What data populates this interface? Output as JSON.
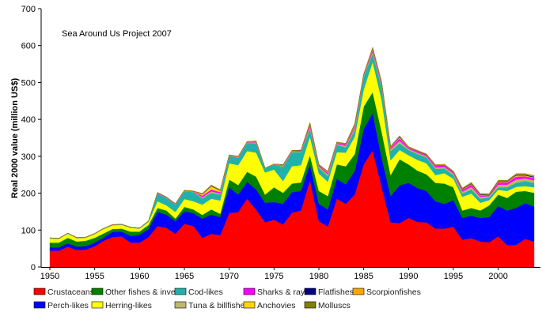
{
  "chart_data": {
    "type": "area",
    "stacked": true,
    "annotation": "Sea Around Us Project 2007",
    "xlabel": "",
    "ylabel": "Real 2000 value (million US$)",
    "xlim": [
      1949,
      2005
    ],
    "ylim": [
      0,
      700
    ],
    "x_ticks": [
      1950,
      1955,
      1960,
      1965,
      1970,
      1975,
      1980,
      1985,
      1990,
      1995,
      2000
    ],
    "y_ticks": [
      0,
      100,
      200,
      300,
      400,
      500,
      600,
      700
    ],
    "grid": false,
    "legend_position": "bottom",
    "x_start": 1950,
    "x_end": 2004,
    "series": [
      {
        "name": "Crustaceans",
        "color": "#ff0000",
        "values": [
          44,
          44,
          55,
          46,
          47,
          56,
          71,
          81,
          83,
          66,
          66,
          81,
          111,
          106,
          90,
          117,
          111,
          79,
          90,
          86,
          146,
          149,
          185,
          155,
          121,
          128,
          115,
          147,
          153,
          235,
          124,
          110,
          185,
          171,
          196,
          278,
          316,
          217,
          121,
          119,
          133,
          122,
          121,
          104,
          104,
          109,
          74,
          78,
          69,
          67,
          83,
          59,
          60,
          76,
          69
        ]
      },
      {
        "name": "Perch-likes",
        "color": "#0000ff",
        "values": [
          9,
          9,
          9,
          9,
          9,
          10,
          9,
          14,
          13,
          18,
          21,
          22,
          38,
          36,
          34,
          34,
          35,
          52,
          52,
          49,
          70,
          47,
          46,
          55,
          53,
          48,
          56,
          56,
          53,
          43,
          47,
          46,
          54,
          53,
          64,
          96,
          101,
          79,
          71,
          102,
          95,
          92,
          85,
          74,
          67,
          72,
          59,
          61,
          64,
          68,
          82,
          94,
          100,
          97,
          95
        ]
      },
      {
        "name": "Other fishes & inverts",
        "color": "#008000",
        "values": [
          13,
          13,
          15,
          14,
          15,
          13,
          11,
          8,
          8,
          12,
          9,
          11,
          11,
          11,
          7,
          12,
          10,
          10,
          14,
          9,
          21,
          26,
          27,
          35,
          22,
          40,
          30,
          23,
          23,
          25,
          35,
          36,
          39,
          49,
          46,
          61,
          57,
          71,
          57,
          71,
          50,
          47,
          45,
          50,
          55,
          35,
          20,
          21,
          20,
          32,
          31,
          34,
          44,
          33,
          37
        ]
      },
      {
        "name": "Herring-likes",
        "color": "#ffff00",
        "values": [
          11,
          10,
          11,
          9,
          8,
          10,
          12,
          10,
          10,
          10,
          8,
          8,
          18,
          14,
          18,
          21,
          22,
          28,
          29,
          36,
          44,
          54,
          56,
          65,
          60,
          48,
          32,
          47,
          47,
          50,
          47,
          39,
          33,
          37,
          47,
          46,
          82,
          86,
          40,
          25,
          25,
          29,
          30,
          21,
          28,
          23,
          37,
          39,
          21,
          14,
          13,
          19,
          13,
          13,
          15
        ]
      },
      {
        "name": "Cod-likes",
        "color": "#20b2aa",
        "values": [
          1,
          1,
          1,
          1,
          1,
          1,
          1,
          1,
          1,
          1,
          1,
          2,
          21,
          20,
          20,
          21,
          25,
          17,
          16,
          16,
          20,
          20,
          22,
          25,
          11,
          14,
          38,
          38,
          35,
          21,
          16,
          15,
          20,
          14,
          18,
          36,
          22,
          36,
          25,
          18,
          14,
          16,
          16,
          17,
          13,
          10,
          9,
          11,
          11,
          8,
          7,
          10,
          11,
          14,
          12
        ]
      },
      {
        "name": "Tuna & billfishes",
        "color": "#bdb76b",
        "values": [
          0.4,
          0.4,
          0.4,
          0.4,
          0.4,
          0.4,
          0.4,
          0.4,
          0.4,
          0.4,
          0.4,
          0.4,
          1,
          1,
          1,
          1,
          1,
          3,
          4,
          3,
          1,
          1.5,
          1.5,
          2.5,
          0.5,
          0.5,
          2.5,
          2,
          2,
          6,
          3,
          5,
          3,
          4,
          6,
          2.5,
          6,
          5,
          5,
          7,
          3,
          3.5,
          3,
          4,
          4,
          4,
          5,
          7,
          5,
          3.5,
          7,
          7,
          9,
          7,
          7
        ]
      },
      {
        "name": "Sharks & rays",
        "color": "#ff00ff",
        "values": [
          0.3,
          0.3,
          0.3,
          0.3,
          0.3,
          0.3,
          0.3,
          0.3,
          0.3,
          0.3,
          0.3,
          0.3,
          1,
          1,
          1,
          1,
          1,
          4,
          5,
          4,
          1,
          1,
          1,
          2,
          0.3,
          0.3,
          2,
          1.5,
          2,
          5,
          3,
          4,
          2.5,
          3,
          5,
          2,
          5,
          4,
          4,
          6,
          3,
          3,
          3,
          4,
          4,
          3.5,
          5,
          6,
          4,
          3,
          6,
          6,
          8,
          6,
          6
        ]
      },
      {
        "name": "Anchovies",
        "color": "#ffd700",
        "values": [
          0.1,
          0.1,
          0.1,
          0.1,
          0.1,
          0.1,
          0.1,
          0.1,
          0.1,
          0.1,
          0.1,
          0.1,
          0.5,
          0.5,
          0.5,
          0.5,
          0.5,
          4,
          9,
          4,
          0.5,
          0.5,
          0.5,
          1,
          0.1,
          0.1,
          1,
          0.5,
          0.5,
          3,
          1,
          2,
          1,
          1.5,
          3,
          1,
          3,
          2,
          2,
          3,
          1,
          1,
          1,
          1,
          1,
          1,
          1.5,
          2,
          1.5,
          1,
          2,
          2,
          3,
          2,
          2
        ]
      },
      {
        "name": "Flatfishes",
        "color": "#000080",
        "values": [
          0.1,
          0.1,
          0.1,
          0.1,
          0.1,
          0.1,
          0.1,
          0.1,
          0.1,
          0.1,
          0.1,
          0.1,
          0.2,
          0.2,
          0.2,
          0.2,
          0.2,
          1,
          1.5,
          1,
          0.2,
          0.5,
          0.5,
          0.5,
          0.1,
          0.1,
          0.5,
          0.5,
          0.5,
          1.5,
          1,
          1,
          0.5,
          1,
          1.5,
          0.5,
          1.5,
          1,
          1,
          2,
          1,
          1,
          1,
          1,
          1,
          1,
          1.5,
          2,
          1.5,
          1,
          1.5,
          1.5,
          2,
          2,
          2
        ]
      },
      {
        "name": "Scorpionfishes",
        "color": "#ffa500",
        "values": [
          0.05,
          0.05,
          0.05,
          0.05,
          0.05,
          0.05,
          0.05,
          0.05,
          0.05,
          0.05,
          0.05,
          0.05,
          0.2,
          0.2,
          0.2,
          0.2,
          0.2,
          1,
          1.5,
          1,
          0.2,
          0.5,
          0.5,
          0.5,
          0.1,
          0.1,
          0.5,
          0.5,
          0.5,
          1.5,
          1,
          1,
          0.5,
          1,
          1.5,
          0.5,
          1.5,
          1,
          1,
          2,
          1,
          1,
          1,
          1,
          1,
          1,
          1.5,
          2,
          1.5,
          1,
          1.5,
          1.5,
          2,
          2,
          2
        ]
      },
      {
        "name": "Molluscs",
        "color": "#808000",
        "values": [
          0.05,
          0.05,
          0.05,
          0.05,
          0.05,
          0.05,
          0.05,
          0.05,
          0.05,
          0.05,
          0.05,
          0.05,
          0.1,
          0.1,
          0.1,
          0.1,
          0.1,
          0.5,
          0.5,
          0.5,
          0.1,
          0.1,
          0.1,
          0.2,
          0.1,
          0.1,
          0.2,
          0.2,
          0.2,
          0.5,
          0.5,
          0.5,
          0.3,
          0.5,
          0.5,
          0.3,
          0.5,
          0.5,
          0.5,
          0.8,
          0.5,
          0.5,
          0.5,
          0.5,
          0.5,
          0.5,
          0.5,
          0.8,
          0.5,
          0.5,
          0.8,
          0.8,
          1,
          1,
          1
        ]
      }
    ],
    "legend_layout": [
      [
        "Crustaceans",
        "Other fishes & inverts",
        "Cod-likes",
        "Sharks & rays",
        "Flatfishes",
        "Scorpionfishes"
      ],
      [
        "Perch-likes",
        "Herring-likes",
        "Tuna & billfishes",
        "Anchovies",
        "Molluscs"
      ]
    ]
  }
}
